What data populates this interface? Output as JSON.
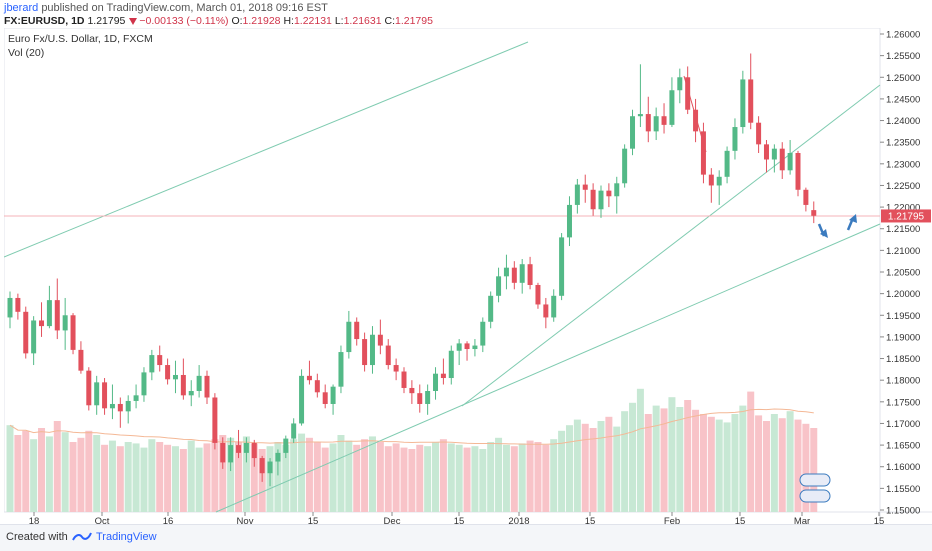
{
  "header": {
    "author": "jberard",
    "published_text": "published on TradingView.com, March 01, 2018 09:16 EST",
    "symbol": "FX:EURUSD, 1D",
    "last": "1.21795",
    "change": "−0.00133 (−0.11%)",
    "o_label": "O:",
    "o_value": "1.21928",
    "h_label": "H:",
    "h_value": "1.22131",
    "l_label": "L:",
    "l_value": "1.21631",
    "c_label": "C:",
    "c_value": "1.21795"
  },
  "footer": {
    "created_label": "Created with",
    "brand": "TradingView"
  },
  "colors": {
    "up": "#53b987",
    "down": "#e2505c",
    "vol_up": "#c7e8d4",
    "vol_down": "#f8c3c8",
    "trendline": "#7fcbb0",
    "ma": "#f4b896",
    "price_line": "#f5b3b8",
    "arrow": "#3b7bbf",
    "price_badge": "#e2505c"
  },
  "chart_data": {
    "type": "candlestick",
    "title": "Euro Fx/U.S. Dollar, 1D, FXCM",
    "volume_label": "Vol (20)",
    "ylim": [
      1.15,
      1.26
    ],
    "y_ticks": [
      "1.26000",
      "1.25500",
      "1.25000",
      "1.24500",
      "1.24000",
      "1.23500",
      "1.23000",
      "1.22500",
      "1.22000",
      "1.21500",
      "1.21000",
      "1.20500",
      "1.20000",
      "1.19500",
      "1.19000",
      "1.18500",
      "1.18000",
      "1.17500",
      "1.17000",
      "1.16500",
      "1.16000",
      "1.15500",
      "1.15000"
    ],
    "x_ticks": [
      "18",
      "Oct",
      "16",
      "Nov",
      "15",
      "Dec",
      "15",
      "2018",
      "15",
      "Feb",
      "15",
      "Mar",
      "15"
    ],
    "current_price": "1.21795",
    "ohlc": [
      [
        1.1945,
        1.2005,
        1.192,
        1.199
      ],
      [
        1.199,
        1.2,
        1.194,
        1.1958
      ],
      [
        1.1958,
        1.197,
        1.185,
        1.1862
      ],
      [
        1.1862,
        1.1948,
        1.1835,
        1.1938
      ],
      [
        1.1938,
        1.198,
        1.19,
        1.1925
      ],
      [
        1.1925,
        1.2018,
        1.192,
        1.1985
      ],
      [
        1.1985,
        1.2035,
        1.1895,
        1.1915
      ],
      [
        1.1915,
        1.199,
        1.187,
        1.195
      ],
      [
        1.195,
        1.1955,
        1.186,
        1.187
      ],
      [
        1.187,
        1.189,
        1.1815,
        1.1822
      ],
      [
        1.1822,
        1.183,
        1.173,
        1.1742
      ],
      [
        1.1742,
        1.181,
        1.172,
        1.1795
      ],
      [
        1.1795,
        1.1805,
        1.172,
        1.1735
      ],
      [
        1.1735,
        1.179,
        1.171,
        1.1745
      ],
      [
        1.1745,
        1.176,
        1.169,
        1.1728
      ],
      [
        1.1728,
        1.1765,
        1.17,
        1.1752
      ],
      [
        1.1752,
        1.179,
        1.1735,
        1.1765
      ],
      [
        1.1765,
        1.183,
        1.175,
        1.1818
      ],
      [
        1.1818,
        1.187,
        1.18,
        1.1858
      ],
      [
        1.1858,
        1.188,
        1.182,
        1.1835
      ],
      [
        1.1835,
        1.185,
        1.179,
        1.1802
      ],
      [
        1.1802,
        1.1845,
        1.177,
        1.1812
      ],
      [
        1.1812,
        1.185,
        1.1755,
        1.1765
      ],
      [
        1.1765,
        1.18,
        1.174,
        1.1775
      ],
      [
        1.1775,
        1.1835,
        1.176,
        1.181
      ],
      [
        1.181,
        1.1822,
        1.1745,
        1.176
      ],
      [
        1.176,
        1.177,
        1.164,
        1.1655
      ],
      [
        1.1655,
        1.1668,
        1.1595,
        1.161
      ],
      [
        1.161,
        1.1668,
        1.159,
        1.165
      ],
      [
        1.165,
        1.1685,
        1.162,
        1.1632
      ],
      [
        1.1632,
        1.1668,
        1.161,
        1.1655
      ],
      [
        1.1655,
        1.1662,
        1.16,
        1.162
      ],
      [
        1.162,
        1.1625,
        1.1565,
        1.1585
      ],
      [
        1.1585,
        1.162,
        1.1555,
        1.1612
      ],
      [
        1.1612,
        1.164,
        1.158,
        1.1632
      ],
      [
        1.1632,
        1.1672,
        1.162,
        1.1665
      ],
      [
        1.1665,
        1.1712,
        1.1655,
        1.17
      ],
      [
        1.17,
        1.1825,
        1.1695,
        1.181
      ],
      [
        1.181,
        1.1845,
        1.179,
        1.18
      ],
      [
        1.18,
        1.1815,
        1.176,
        1.1772
      ],
      [
        1.1772,
        1.179,
        1.1735,
        1.1745
      ],
      [
        1.1745,
        1.179,
        1.172,
        1.1785
      ],
      [
        1.1785,
        1.188,
        1.177,
        1.1865
      ],
      [
        1.1865,
        1.196,
        1.185,
        1.1935
      ],
      [
        1.1935,
        1.1945,
        1.188,
        1.1895
      ],
      [
        1.1895,
        1.191,
        1.182,
        1.1835
      ],
      [
        1.1835,
        1.1925,
        1.1815,
        1.1905
      ],
      [
        1.1905,
        1.194,
        1.186,
        1.188
      ],
      [
        1.188,
        1.1895,
        1.1825,
        1.1835
      ],
      [
        1.1835,
        1.185,
        1.18,
        1.182
      ],
      [
        1.182,
        1.183,
        1.177,
        1.1782
      ],
      [
        1.1782,
        1.18,
        1.1745,
        1.177
      ],
      [
        1.177,
        1.179,
        1.1725,
        1.1745
      ],
      [
        1.1745,
        1.179,
        1.172,
        1.1775
      ],
      [
        1.1775,
        1.183,
        1.1755,
        1.1815
      ],
      [
        1.1815,
        1.185,
        1.179,
        1.1805
      ],
      [
        1.1805,
        1.188,
        1.179,
        1.1868
      ],
      [
        1.1868,
        1.1895,
        1.1835,
        1.1885
      ],
      [
        1.1885,
        1.189,
        1.1845,
        1.1872
      ],
      [
        1.1872,
        1.1895,
        1.1855,
        1.188
      ],
      [
        1.188,
        1.1945,
        1.1865,
        1.1935
      ],
      [
        1.1935,
        1.2005,
        1.192,
        1.1995
      ],
      [
        1.1995,
        1.206,
        1.198,
        1.204
      ],
      [
        1.204,
        1.209,
        1.201,
        1.206
      ],
      [
        1.206,
        1.2075,
        1.201,
        1.2025
      ],
      [
        1.2025,
        1.208,
        1.2,
        1.2068
      ],
      [
        1.2068,
        1.2085,
        1.201,
        1.202
      ],
      [
        1.202,
        1.2025,
        1.1965,
        1.1975
      ],
      [
        1.1975,
        1.199,
        1.192,
        1.1945
      ],
      [
        1.1945,
        1.201,
        1.1935,
        1.1995
      ],
      [
        1.1995,
        1.214,
        1.1985,
        1.213
      ],
      [
        1.213,
        1.2225,
        1.211,
        1.2205
      ],
      [
        1.2205,
        1.2265,
        1.2185,
        1.2252
      ],
      [
        1.2252,
        1.2275,
        1.221,
        1.224
      ],
      [
        1.224,
        1.2255,
        1.218,
        1.2195
      ],
      [
        1.2195,
        1.225,
        1.2175,
        1.2238
      ],
      [
        1.2238,
        1.2255,
        1.22,
        1.2225
      ],
      [
        1.2225,
        1.227,
        1.2185,
        1.2255
      ],
      [
        1.2255,
        1.2345,
        1.2245,
        1.2335
      ],
      [
        1.2335,
        1.2425,
        1.232,
        1.241
      ],
      [
        1.241,
        1.253,
        1.2385,
        1.2415
      ],
      [
        1.2415,
        1.2455,
        1.235,
        1.2375
      ],
      [
        1.2375,
        1.243,
        1.2355,
        1.241
      ],
      [
        1.241,
        1.244,
        1.237,
        1.239
      ],
      [
        1.239,
        1.25,
        1.2385,
        1.247
      ],
      [
        1.247,
        1.252,
        1.244,
        1.25
      ],
      [
        1.25,
        1.2525,
        1.2415,
        1.2425
      ],
      [
        1.2425,
        1.245,
        1.235,
        1.2375
      ],
      [
        1.2375,
        1.2395,
        1.2255,
        1.2275
      ],
      [
        1.2275,
        1.229,
        1.221,
        1.225
      ],
      [
        1.225,
        1.2285,
        1.2205,
        1.227
      ],
      [
        1.227,
        1.234,
        1.2255,
        1.233
      ],
      [
        1.233,
        1.2405,
        1.231,
        1.2385
      ],
      [
        1.2385,
        1.2515,
        1.237,
        1.2495
      ],
      [
        1.2495,
        1.2555,
        1.238,
        1.2395
      ],
      [
        1.2395,
        1.241,
        1.2325,
        1.2345
      ],
      [
        1.2345,
        1.2355,
        1.228,
        1.231
      ],
      [
        1.231,
        1.2345,
        1.228,
        1.2335
      ],
      [
        1.2335,
        1.235,
        1.2265,
        1.2285
      ],
      [
        1.2285,
        1.2355,
        1.2275,
        1.2325
      ],
      [
        1.2325,
        1.233,
        1.2225,
        1.224
      ],
      [
        1.224,
        1.2245,
        1.219,
        1.2205
      ],
      [
        1.2193,
        1.2213,
        1.2163,
        1.218
      ]
    ],
    "volumes": [
      0.62,
      0.55,
      0.58,
      0.52,
      0.6,
      0.54,
      0.65,
      0.57,
      0.5,
      0.53,
      0.58,
      0.55,
      0.48,
      0.51,
      0.47,
      0.5,
      0.49,
      0.46,
      0.52,
      0.5,
      0.48,
      0.47,
      0.45,
      0.51,
      0.46,
      0.49,
      0.52,
      0.55,
      0.53,
      0.5,
      0.54,
      0.49,
      0.45,
      0.47,
      0.5,
      0.48,
      0.52,
      0.56,
      0.53,
      0.5,
      0.46,
      0.49,
      0.55,
      0.51,
      0.48,
      0.52,
      0.54,
      0.5,
      0.47,
      0.49,
      0.46,
      0.45,
      0.48,
      0.47,
      0.5,
      0.52,
      0.49,
      0.48,
      0.46,
      0.47,
      0.45,
      0.5,
      0.53,
      0.48,
      0.47,
      0.49,
      0.51,
      0.5,
      0.48,
      0.52,
      0.58,
      0.62,
      0.66,
      0.63,
      0.6,
      0.65,
      0.68,
      0.61,
      0.72,
      0.78,
      0.88,
      0.7,
      0.76,
      0.74,
      0.82,
      0.75,
      0.8,
      0.73,
      0.7,
      0.68,
      0.66,
      0.64,
      0.7,
      0.76,
      0.86,
      0.69,
      0.65,
      0.7,
      0.67,
      0.72,
      0.66,
      0.63,
      0.6
    ],
    "annotations": [
      "down-arrow",
      "up-arrow"
    ]
  }
}
